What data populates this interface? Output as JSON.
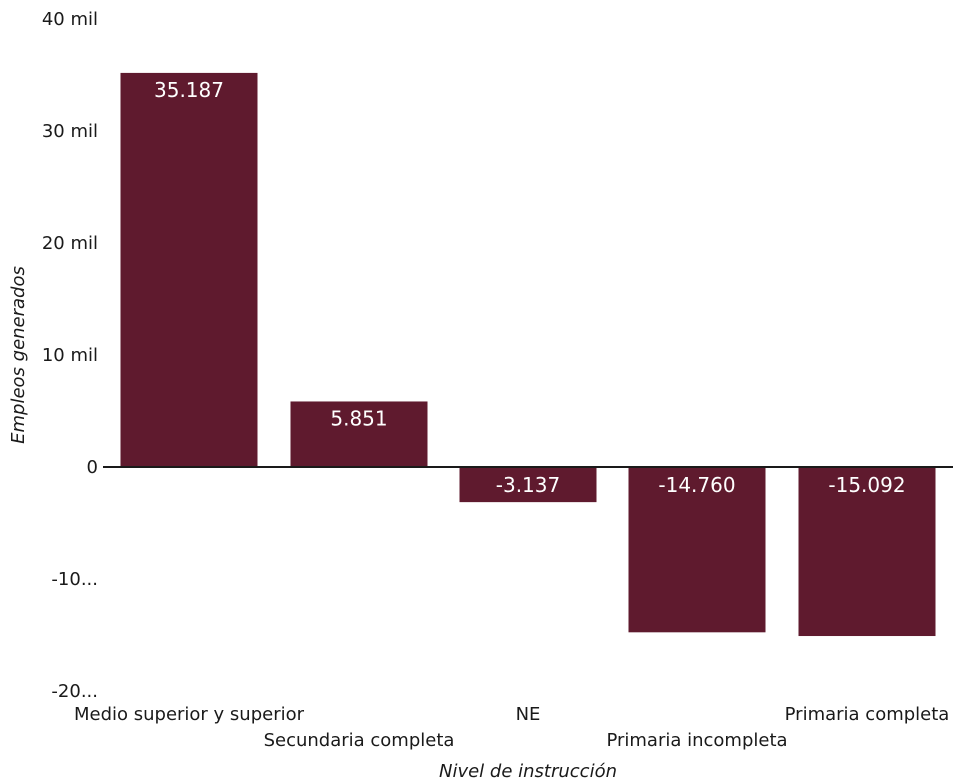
{
  "chart_data": {
    "type": "bar",
    "categories": [
      "Medio superior y superior",
      "Secundaria completa",
      "NE",
      "Primaria incompleta",
      "Primaria completa"
    ],
    "values": [
      35187,
      5851,
      -3137,
      -14760,
      -15092
    ],
    "value_labels": [
      "35.187",
      "5.851",
      "-3.137",
      "-14.760",
      "-15.092"
    ],
    "y_ticks": [
      {
        "value": 40000,
        "label": "40 mil"
      },
      {
        "value": 30000,
        "label": "30 mil"
      },
      {
        "value": 20000,
        "label": "20 mil"
      },
      {
        "value": 10000,
        "label": "10 mil"
      },
      {
        "value": 0,
        "label": "0"
      },
      {
        "value": -10000,
        "label": "-10..."
      },
      {
        "value": -20000,
        "label": "-20..."
      }
    ],
    "ylim": [
      -20000,
      40000
    ],
    "xlabel": "Nivel de instrucción",
    "ylabel": "Empleos generados",
    "bar_color": "#5f1a2e",
    "grid": false,
    "legend": "none"
  }
}
